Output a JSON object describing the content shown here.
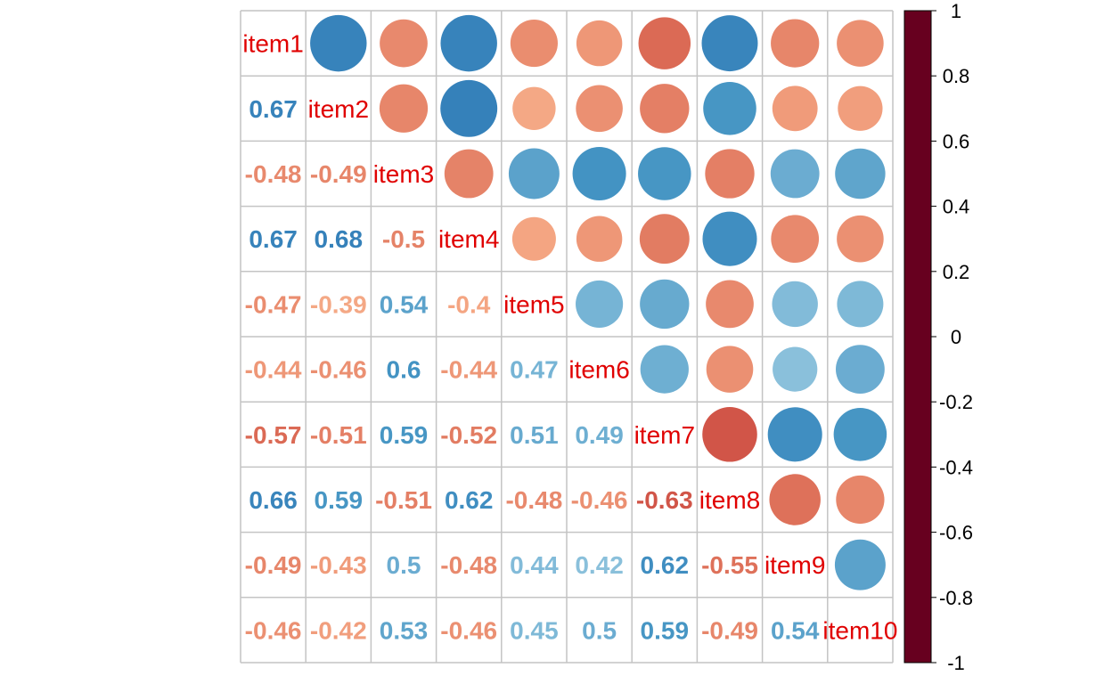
{
  "chart_data": {
    "type": "heatmap",
    "variables": [
      "item1",
      "item2",
      "item3",
      "item4",
      "item5",
      "item6",
      "item7",
      "item8",
      "item9",
      "item10"
    ],
    "lower_labels": [
      [],
      [
        "0.67"
      ],
      [
        "-0.48",
        "-0.49"
      ],
      [
        "0.67",
        "0.68",
        "-0.5"
      ],
      [
        "-0.47",
        "-0.39",
        "0.54",
        "-0.4"
      ],
      [
        "-0.44",
        "-0.46",
        "0.6",
        "-0.44",
        "0.47"
      ],
      [
        "-0.57",
        "-0.51",
        "0.59",
        "-0.52",
        "0.51",
        "0.49"
      ],
      [
        "0.66",
        "0.59",
        "-0.51",
        "0.62",
        "-0.48",
        "-0.46",
        "-0.63"
      ],
      [
        "-0.49",
        "-0.43",
        "0.5",
        "-0.48",
        "0.44",
        "0.42",
        "0.62",
        "-0.55"
      ],
      [
        "-0.46",
        "-0.42",
        "0.53",
        "-0.46",
        "0.45",
        "0.5",
        "0.59",
        "-0.49",
        "0.54"
      ]
    ],
    "upper": "circle",
    "lower": "number",
    "diagonal": "variable names",
    "colorbar": {
      "range": [
        -1,
        1
      ],
      "tick_labels": [
        "1",
        "0.8",
        "0.6",
        "0.4",
        "0.2",
        "0",
        "-0.2",
        "-0.4",
        "-0.6",
        "-0.8",
        "-1"
      ],
      "colors": [
        "#67001F",
        "#B2182B",
        "#D6604D",
        "#F4A582",
        "#FDDBC7",
        "#FFFFFF",
        "#D1E5F0",
        "#92C5DE",
        "#4393C3",
        "#2166AC",
        "#053061"
      ]
    },
    "grid": true
  }
}
